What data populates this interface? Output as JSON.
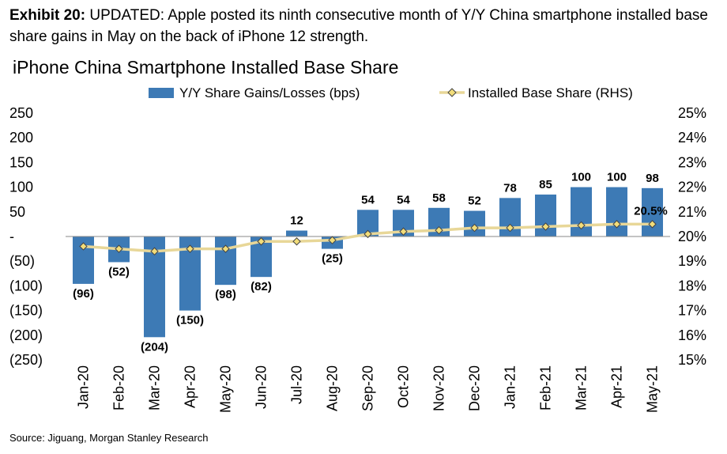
{
  "header": {
    "exhibit_label": "Exhibit 20:",
    "exhibit_text": "UPDATED: Apple posted its ninth consecutive month of Y/Y China smartphone installed base share gains in May on the back of iPhone 12 strength."
  },
  "footer": {
    "source": "Source: Jiguang, Morgan Stanley Research"
  },
  "colors": {
    "bar": "#3d7ab5",
    "line": "#e8d798",
    "marker_fill": "#f2dd7a",
    "marker_stroke": "#444444"
  },
  "chart_data": {
    "type": "bar",
    "title": "iPhone China Smartphone Installed Base Share",
    "categories": [
      "Jan-20",
      "Feb-20",
      "Mar-20",
      "Apr-20",
      "May-20",
      "Jun-20",
      "Jul-20",
      "Aug-20",
      "Sep-20",
      "Oct-20",
      "Nov-20",
      "Dec-20",
      "Jan-21",
      "Feb-21",
      "Mar-21",
      "Apr-21",
      "May-21"
    ],
    "series": [
      {
        "name": "Y/Y Share Gains/Losses (bps)",
        "type": "bar",
        "axis": "left",
        "values": [
          -96,
          -52,
          -204,
          -150,
          -98,
          -82,
          12,
          -25,
          54,
          54,
          58,
          52,
          78,
          85,
          100,
          100,
          98
        ],
        "labels": [
          "(96)",
          "(52)",
          "(204)",
          "(150)",
          "(98)",
          "(82)",
          "12",
          "(25)",
          "54",
          "54",
          "58",
          "52",
          "78",
          "85",
          "100",
          "100",
          "98"
        ]
      },
      {
        "name": "Installed Base Share (RHS)",
        "type": "line",
        "axis": "right",
        "values": [
          19.6,
          19.5,
          19.4,
          19.5,
          19.5,
          19.8,
          19.8,
          19.85,
          20.1,
          20.2,
          20.25,
          20.35,
          20.35,
          20.4,
          20.45,
          20.5,
          20.5
        ]
      }
    ],
    "last_line_label": "20.5%",
    "y_left": {
      "min": -250,
      "max": 250,
      "step": 50,
      "tick_labels": [
        "(250)",
        "(200)",
        "(150)",
        "(100)",
        "(50)",
        "-",
        "50",
        "100",
        "150",
        "200",
        "250"
      ]
    },
    "y_right": {
      "min": 15,
      "max": 25,
      "step": 1,
      "tick_labels": [
        "15%",
        "16%",
        "17%",
        "18%",
        "19%",
        "20%",
        "21%",
        "22%",
        "23%",
        "24%",
        "25%"
      ]
    },
    "grid": false,
    "legend_position": "top"
  }
}
